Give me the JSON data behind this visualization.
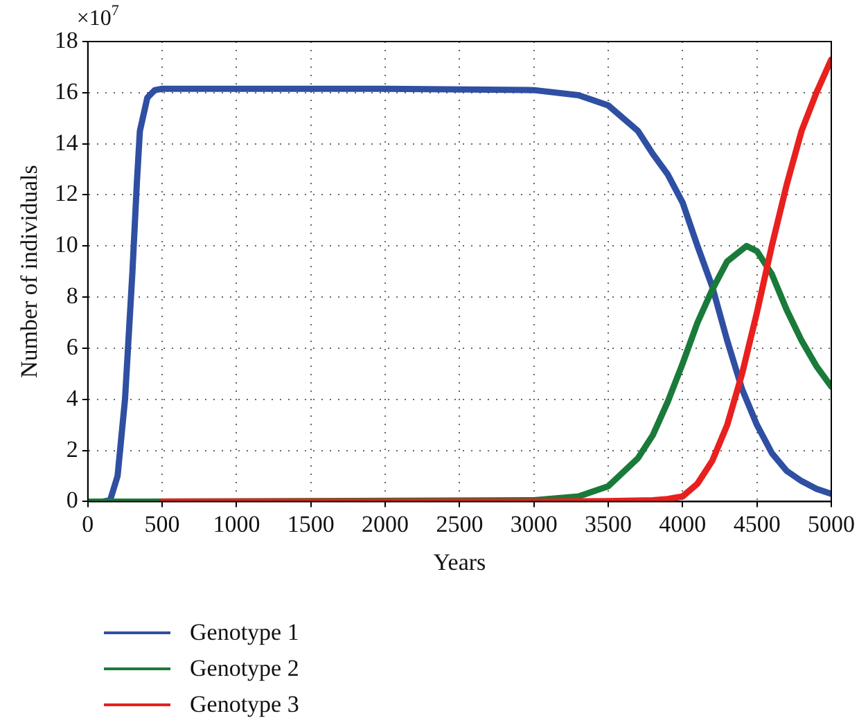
{
  "chart_data": {
    "type": "line",
    "xlabel": "Years",
    "ylabel": "Number of individuals",
    "annotations": [
      "×10$^{7}$"
    ],
    "xlim": [
      0,
      5000
    ],
    "xticks": [
      0,
      500,
      1000,
      1500,
      2000,
      2500,
      3000,
      3500,
      4000,
      4500,
      5000
    ],
    "ylim": [
      0,
      18
    ],
    "yticks": [
      0,
      2,
      4,
      6,
      8,
      10,
      12,
      14,
      16,
      18
    ],
    "grid": true,
    "legend": "bottom left",
    "marker": "none",
    "line_style": "solid",
    "series": [
      {
        "name": "Genotype 1",
        "color": "#2f4fa2",
        "x": [
          0,
          100,
          150,
          200,
          250,
          300,
          330,
          350,
          400,
          450,
          500,
          1000,
          2000,
          3000,
          3300,
          3500,
          3700,
          3800,
          3900,
          4000,
          4100,
          4200,
          4300,
          4400,
          4500,
          4600,
          4700,
          4800,
          4900,
          5000
        ],
        "values": [
          0,
          0,
          0.05,
          1,
          4,
          9,
          12.5,
          14.5,
          15.8,
          16.1,
          16.15,
          16.15,
          16.15,
          16.1,
          15.9,
          15.5,
          14.5,
          13.6,
          12.8,
          11.7,
          10,
          8.4,
          6.3,
          4.4,
          3,
          1.9,
          1.2,
          0.8,
          0.5,
          0.3
        ]
      },
      {
        "name": "Genotype 2",
        "color": "#1a7a3a",
        "x": [
          0,
          400,
          3000,
          3300,
          3500,
          3700,
          3800,
          3900,
          4000,
          4100,
          4200,
          4300,
          4430,
          4500,
          4600,
          4700,
          4800,
          4900,
          5000
        ],
        "values": [
          0,
          0,
          0.05,
          0.2,
          0.6,
          1.7,
          2.6,
          3.9,
          5.4,
          7,
          8.3,
          9.4,
          10,
          9.8,
          8.9,
          7.5,
          6.3,
          5.3,
          4.5
        ]
      },
      {
        "name": "Genotype 3",
        "color": "#e8201e",
        "x": [
          500,
          1000,
          2000,
          3000,
          3500,
          3800,
          3900,
          4000,
          4100,
          4200,
          4300,
          4400,
          4500,
          4600,
          4700,
          4800,
          4900,
          5000
        ],
        "values": [
          0,
          0,
          0,
          0,
          0.02,
          0.05,
          0.1,
          0.2,
          0.7,
          1.6,
          3,
          5,
          7.4,
          10,
          12.4,
          14.5,
          16,
          17.3
        ]
      }
    ]
  }
}
